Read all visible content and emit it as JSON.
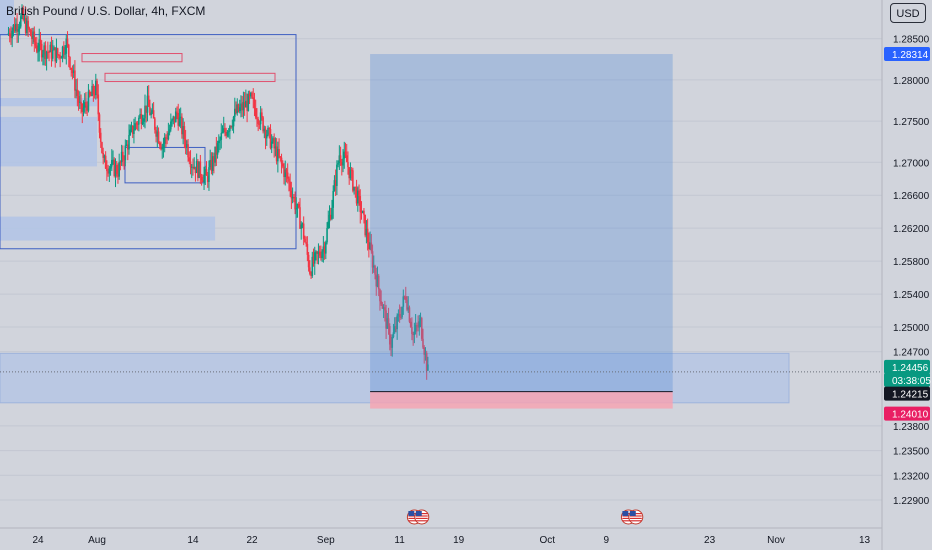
{
  "header": {
    "symbol_title": "British Pound / U.S. Dollar, 4h, FXCM",
    "currency_button": "USD"
  },
  "colors": {
    "up_candle": "#089981",
    "down_candle": "#f23645",
    "zone_fill": "#b2c4e6",
    "profit_fill": "#5c8fd6",
    "loss_fill": "#f7a1b0",
    "entry_line": "#131722",
    "ob_outline_red": "#e0506e",
    "ob_outline_blue": "#3e5fc2",
    "grid": "#c3c7d2"
  },
  "chart_data": {
    "type": "candlestick",
    "title": "British Pound / U.S. Dollar, 4h, FXCM",
    "y_axis_ticks": [
      "1.28500",
      "1.28000",
      "1.27500",
      "1.27000",
      "1.26600",
      "1.26200",
      "1.25800",
      "1.25400",
      "1.25000",
      "1.24700",
      "1.23800",
      "1.23500",
      "1.23200",
      "1.22900"
    ],
    "x_axis_ticks": [
      "24",
      "Aug",
      "14",
      "22",
      "Sep",
      "11",
      "19",
      "Oct",
      "9",
      "23",
      "Nov",
      "13"
    ],
    "ylim": [
      1.229,
      1.288
    ],
    "price_tags": [
      {
        "value": "1.28314",
        "style": "blue"
      },
      {
        "value": "1.24456",
        "style": "green"
      },
      {
        "value": "03:38:05",
        "style": "green-sub"
      },
      {
        "value": "1.24215",
        "style": "black"
      },
      {
        "value": "1.24010",
        "style": "red"
      }
    ],
    "position_tool": {
      "entry": 1.24215,
      "target": 1.28314,
      "stop": 1.2401,
      "start_date": "Sep 7",
      "end_date": "Oct 18"
    },
    "demand_zone": {
      "top": 1.2468,
      "bottom": 1.2408
    },
    "supply_zones": [
      {
        "top": 1.2778,
        "bottom": 1.2768,
        "from": "Jul 20",
        "to": "Aug 1"
      },
      {
        "top": 1.2755,
        "bottom": 1.2695,
        "from": "Jul 20",
        "to": "Aug 1"
      },
      {
        "top": 1.2634,
        "bottom": 1.2605,
        "from": "Jul 20",
        "to": "Aug 17"
      }
    ],
    "event_markers": [
      {
        "date": "Sep 13",
        "icon": "us-flag-icon"
      },
      {
        "date": "Sep 14",
        "icon": "us-flag-icon"
      },
      {
        "date": "Oct 12",
        "icon": "us-flag-icon"
      },
      {
        "date": "Oct 13",
        "icon": "us-flag-icon"
      }
    ],
    "path_points": [
      [
        "Jul 20",
        1.2855
      ],
      [
        "Jul 22",
        1.2875
      ],
      [
        "Jul 24",
        1.284
      ],
      [
        "Jul 27",
        1.283
      ],
      [
        "Jul 28",
        1.2845
      ],
      [
        "Jul 30",
        1.276
      ],
      [
        "Aug 1",
        1.279
      ],
      [
        "Aug 2",
        1.27
      ],
      [
        "Aug 4",
        1.269
      ],
      [
        "Aug 6",
        1.274
      ],
      [
        "Aug 8",
        1.277
      ],
      [
        "Aug 10",
        1.272
      ],
      [
        "Aug 12",
        1.276
      ],
      [
        "Aug 14",
        1.27
      ],
      [
        "Aug 16",
        1.268
      ],
      [
        "Aug 18",
        1.273
      ],
      [
        "Aug 20",
        1.276
      ],
      [
        "Aug 22",
        1.2775
      ],
      [
        "Aug 24",
        1.274
      ],
      [
        "Aug 27",
        1.268
      ],
      [
        "Aug 29",
        1.262
      ],
      [
        "Aug 30",
        1.257
      ],
      [
        "Sep 1",
        1.26
      ],
      [
        "Sep 2",
        1.265
      ],
      [
        "Sep 3",
        1.271
      ],
      [
        "Sep 4",
        1.27
      ],
      [
        "Sep 5",
        1.267
      ],
      [
        "Sep 6",
        1.264
      ],
      [
        "Sep 7",
        1.26
      ],
      [
        "Sep 8",
        1.256
      ],
      [
        "Sep 9",
        1.252
      ],
      [
        "Sep 10",
        1.248
      ],
      [
        "Sep 11",
        1.251
      ],
      [
        "Sep 12",
        1.254
      ],
      [
        "Sep 13",
        1.249
      ],
      [
        "Sep 14",
        1.2505
      ],
      [
        "Sep 15",
        1.2445
      ]
    ]
  }
}
